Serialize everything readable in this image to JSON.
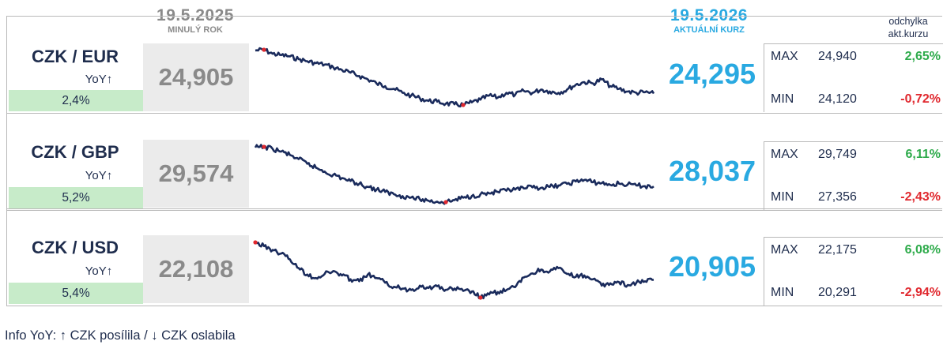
{
  "header": {
    "prev_date": "19.5.2025",
    "prev_label": "MINULÝ ROK",
    "curr_date": "19.5.2026",
    "curr_label": "AKTUÁLNÍ KURZ",
    "deviation_label_1": "odchylka",
    "deviation_label_2": "akt.kurzu"
  },
  "rows": [
    {
      "pair": "CZK / EUR",
      "yoy_label": "YoY↑",
      "yoy_value": "2,4%",
      "prev_rate": "24,905",
      "curr_rate": "24,295",
      "max_label": "MAX",
      "max_value": "24,940",
      "max_dev": "2,65%",
      "min_label": "MIN",
      "min_value": "24,120",
      "min_dev": "-0,72%"
    },
    {
      "pair": "CZK / GBP",
      "yoy_label": "YoY↑",
      "yoy_value": "5,2%",
      "prev_rate": "29,574",
      "curr_rate": "28,037",
      "max_label": "MAX",
      "max_value": "29,749",
      "max_dev": "6,11%",
      "min_label": "MIN",
      "min_value": "27,356",
      "min_dev": "-2,43%"
    },
    {
      "pair": "CZK / USD",
      "yoy_label": "YoY↑",
      "yoy_value": "5,4%",
      "prev_rate": "22,108",
      "curr_rate": "20,905",
      "max_label": "MAX",
      "max_value": "22,175",
      "max_dev": "6,08%",
      "min_label": "MIN",
      "min_value": "20,291",
      "min_dev": "-2,94%"
    }
  ],
  "footer": {
    "info": "Info YoY: ↑ CZK posílila / ↓ CZK oslabila"
  },
  "colors": {
    "line": "#1a2b5c",
    "marker": "#e0282e",
    "current": "#29a9e1",
    "positive": "#2eab4b",
    "negative": "#e0282e",
    "yoy_bg": "#c7ebc9"
  },
  "sparklines": [
    {
      "points": [
        24.93,
        24.94,
        24.88,
        24.86,
        24.84,
        24.8,
        24.77,
        24.74,
        24.72,
        24.68,
        24.64,
        24.6,
        24.55,
        24.5,
        24.44,
        24.4,
        24.36,
        24.3,
        24.26,
        24.22,
        24.18,
        24.17,
        24.14,
        24.13,
        24.12,
        24.16,
        24.2,
        24.26,
        24.23,
        24.3,
        24.27,
        24.33,
        24.3,
        24.35,
        24.32,
        24.3,
        24.35,
        24.42,
        24.46,
        24.44,
        24.5,
        24.4,
        24.36,
        24.32,
        24.3,
        24.31,
        24.29
      ],
      "max_index": 1,
      "min_index": 24
    },
    {
      "points": [
        29.72,
        29.75,
        29.66,
        29.55,
        29.4,
        29.22,
        29.02,
        28.85,
        28.68,
        28.54,
        28.4,
        28.27,
        28.15,
        28.02,
        27.9,
        27.8,
        27.7,
        27.62,
        27.56,
        27.48,
        27.42,
        27.38,
        27.36,
        27.45,
        27.55,
        27.62,
        27.7,
        27.74,
        27.8,
        27.85,
        27.9,
        27.95,
        28.0,
        27.98,
        28.02,
        28.08,
        28.15,
        28.25,
        28.32,
        28.22,
        28.18,
        28.1,
        28.16,
        28.12,
        28.08,
        28.05,
        28.04
      ],
      "max_index": 1,
      "min_index": 22
    },
    {
      "points": [
        22.18,
        22.05,
        21.92,
        21.8,
        21.6,
        21.3,
        21.08,
        20.96,
        21.1,
        21.2,
        21.05,
        20.92,
        20.85,
        21.08,
        20.96,
        20.8,
        20.66,
        20.6,
        20.55,
        20.7,
        20.62,
        20.68,
        20.56,
        20.6,
        20.52,
        20.5,
        20.29,
        20.4,
        20.48,
        20.55,
        20.65,
        20.98,
        21.12,
        21.25,
        21.18,
        21.3,
        21.1,
        21.0,
        21.05,
        20.92,
        20.7,
        20.78,
        20.82,
        20.72,
        20.8,
        20.85,
        20.9
      ],
      "max_index": 0,
      "min_index": 26
    }
  ]
}
